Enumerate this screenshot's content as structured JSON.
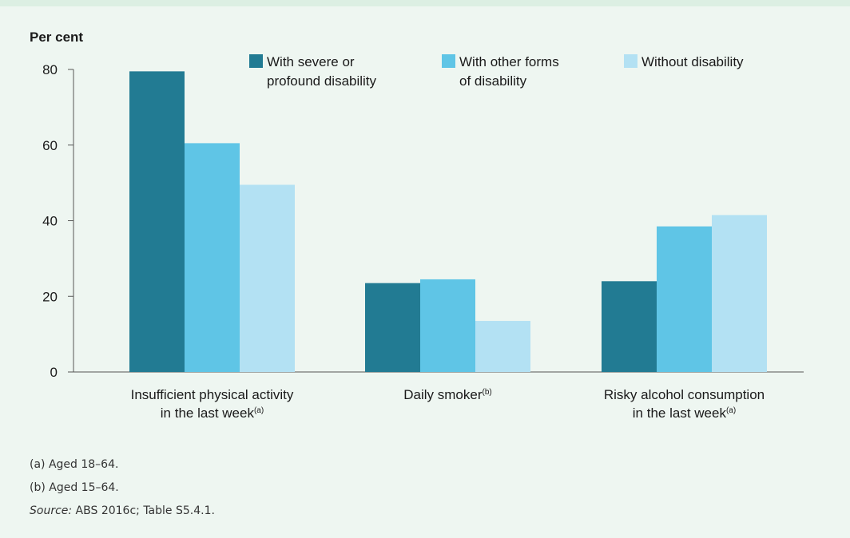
{
  "chart_data": {
    "type": "bar",
    "ylabel": "Per cent",
    "ylim": [
      0,
      80
    ],
    "yticks": [
      0,
      20,
      40,
      60,
      80
    ],
    "categories": [
      {
        "lines": [
          "Insufficient physical activity",
          "in the last week"
        ],
        "note": "(a)"
      },
      {
        "lines": [
          "Daily smoker"
        ],
        "note": "(b)"
      },
      {
        "lines": [
          "Risky alcohol consumption",
          "in the last week"
        ],
        "note": "(a)"
      }
    ],
    "series": [
      {
        "name": "With severe or profound disability",
        "name_lines": [
          "With severe or",
          "profound disability"
        ],
        "color": "#227b93",
        "values": [
          79.5,
          23.5,
          24
        ]
      },
      {
        "name": "With other forms of disability",
        "name_lines": [
          "With other forms",
          "of disability"
        ],
        "color": "#5fc5e6",
        "values": [
          60.5,
          24.5,
          38.5
        ]
      },
      {
        "name": "Without disability",
        "name_lines": [
          "Without disability"
        ],
        "color": "#b3e1f3",
        "values": [
          49.5,
          13.5,
          41.5
        ]
      }
    ],
    "legend": "top"
  },
  "notes": {
    "a": "(a) Aged 18–64.",
    "b": "(b) Aged 15–64.",
    "source_label": "Source:",
    "source_text": " ABS 2016c; Table S5.4.1."
  },
  "colors": {
    "background": "#eef6f1",
    "axis": "#555555"
  }
}
